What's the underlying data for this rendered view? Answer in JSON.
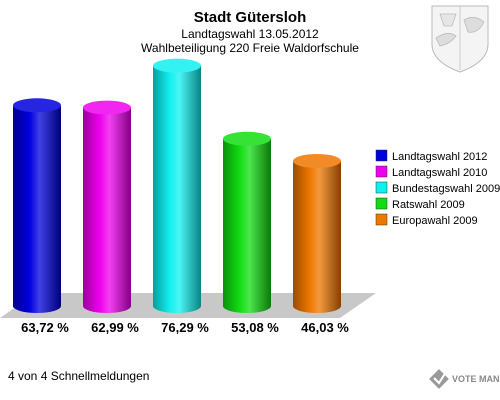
{
  "chart_data": {
    "type": "bar",
    "title": "Stadt Gütersloh",
    "subtitle": "Landtagswahl 13.05.2012",
    "subtitle2": "Wahlbeteiligung 220 Freie Waldorfschule",
    "categories": [
      "Landtagswahl 2012",
      "Landtagswahl 2010",
      "Bundestagswahl 2009",
      "Ratswahl 2009",
      "Europawahl 2009"
    ],
    "values": [
      63.72,
      62.99,
      76.29,
      53.08,
      46.03
    ],
    "value_labels": [
      "63,72 %",
      "62,99 %",
      "76,29 %",
      "53,08 %",
      "46,03 %"
    ],
    "colors": [
      "#0000dd",
      "#ee00ee",
      "#11f0f0",
      "#11dd11",
      "#ee7700"
    ],
    "legend_position": "right",
    "ylim": [
      0,
      80
    ]
  },
  "footer": "4 von 4 Schnellmeldungen",
  "logo": {
    "name": "vote-manager-logo",
    "text": "VOTE MANAGER"
  },
  "crest": {
    "icon": "nrw-crest-icon"
  }
}
